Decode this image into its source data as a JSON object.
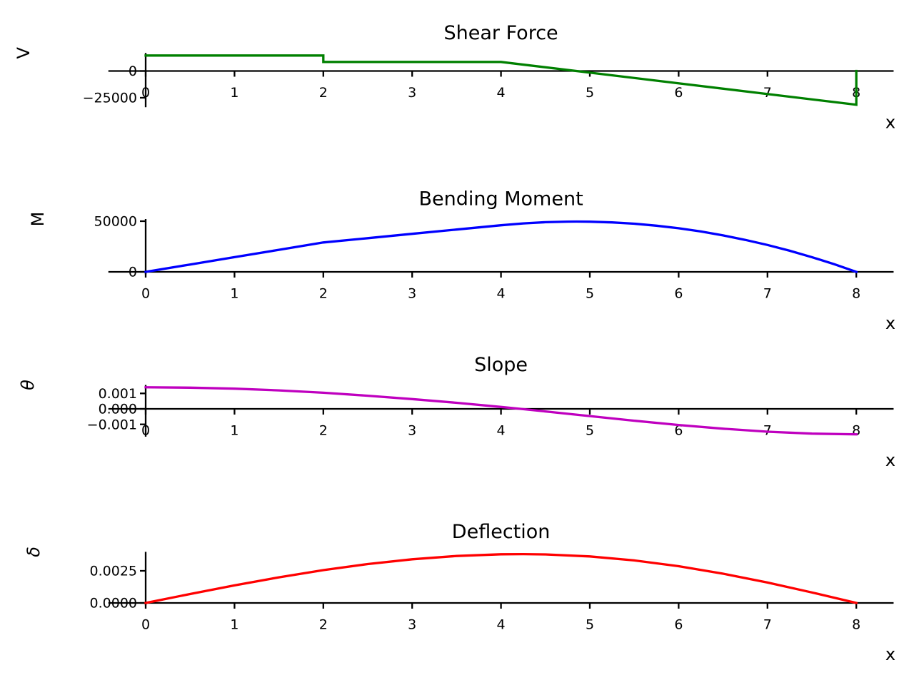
{
  "figure": {
    "background": "#ffffff",
    "text_color": "#000000"
  },
  "chart_data": [
    {
      "type": "line",
      "title": "Shear Force",
      "ylabel": "V",
      "ylabel_italic": false,
      "xlabel": "x",
      "color": "#008000",
      "grid": false,
      "legend": "none",
      "xlim": [
        -0.42,
        8.42
      ],
      "ylim": [
        -33800,
        16800
      ],
      "xticks": [
        0,
        1,
        2,
        3,
        4,
        5,
        6,
        7,
        8
      ],
      "yticks": [
        {
          "value": 0,
          "label": "0"
        },
        {
          "value": -25000,
          "label": "−25000"
        }
      ],
      "x": [
        0,
        2,
        2,
        4,
        8,
        8
      ],
      "y": [
        14500,
        14500,
        8500,
        8500,
        -31500,
        0
      ],
      "shape_note": "constant 14500 on [0,2], step down to 8500 on [2,4], linear drop to -31500 at x=8, vertical jump back to 0"
    },
    {
      "type": "line",
      "title": "Bending Moment",
      "ylabel": "M",
      "ylabel_italic": false,
      "xlabel": "x",
      "color": "#0000ff",
      "grid": false,
      "legend": "none",
      "xlim": [
        -0.42,
        8.42
      ],
      "ylim": [
        -2481,
        52093
      ],
      "xticks": [
        0,
        1,
        2,
        3,
        4,
        5,
        6,
        7,
        8
      ],
      "yticks": [
        {
          "value": 50000,
          "label": "50000"
        },
        {
          "value": 0,
          "label": "0"
        }
      ],
      "x": [
        0,
        0.5,
        1,
        1.5,
        2,
        2.5,
        3,
        3.5,
        4,
        4.25,
        4.5,
        4.75,
        4.85,
        5,
        5.25,
        5.5,
        5.75,
        6,
        6.25,
        6.5,
        6.75,
        7,
        7.25,
        7.5,
        7.75,
        8
      ],
      "y": [
        0,
        7250,
        14500,
        21750,
        29000,
        33250,
        37500,
        41750,
        46000,
        47813,
        49000,
        49563,
        49612,
        49500,
        48813,
        47500,
        45563,
        43000,
        39813,
        36000,
        31563,
        26500,
        20813,
        14500,
        7563,
        0
      ],
      "shape_note": "rises piecewise-linearly to 46000 at x=4, parabolic peak ~49600 near x=4.85, back to 0 at x=8"
    },
    {
      "type": "line",
      "title": "Slope",
      "ylabel": "θ",
      "ylabel_italic": true,
      "xlabel": "x",
      "color": "#bf00bf",
      "grid": false,
      "legend": "none",
      "xlim": [
        -0.42,
        8.42
      ],
      "ylim": [
        -0.001798,
        0.001546
      ],
      "xticks": [
        0,
        1,
        2,
        3,
        4,
        5,
        6,
        7,
        8
      ],
      "yticks": [
        {
          "value": 0.001,
          "label": "0.001"
        },
        {
          "value": 0,
          "label": "0.000"
        },
        {
          "value": -0.001,
          "label": "−0.001"
        }
      ],
      "x": [
        0,
        0.5,
        1,
        1.5,
        2,
        2.5,
        3,
        3.5,
        4,
        4.25,
        4.5,
        5,
        5.5,
        6,
        6.5,
        7,
        7.5,
        8
      ],
      "y": [
        0.001394,
        0.001372,
        0.001306,
        0.001195,
        0.001041,
        0.000851,
        0.000635,
        0.000394,
        0.000126,
        -1.7e-05,
        -0.000165,
        -0.000466,
        -0.000763,
        -0.001041,
        -0.001283,
        -0.001475,
        -0.001601,
        -0.001646
      ],
      "shape_note": "starts ~+0.0014, crosses zero near x=4.25, flattens to ~-0.00165 at x=8"
    },
    {
      "type": "line",
      "title": "Deflection",
      "ylabel": "δ",
      "ylabel_italic": true,
      "xlabel": "x",
      "color": "#ff0000",
      "grid": false,
      "legend": "none",
      "xlim": [
        -0.42,
        8.42
      ],
      "ylim": [
        -0.000189,
        0.003978
      ],
      "xticks": [
        0,
        1,
        2,
        3,
        4,
        5,
        6,
        7,
        8
      ],
      "yticks": [
        {
          "value": 0.0025,
          "label": "0.0025"
        },
        {
          "value": 0,
          "label": "0.0000"
        }
      ],
      "x": [
        0,
        0.5,
        1,
        1.5,
        2,
        2.5,
        3,
        3.5,
        4,
        4.25,
        4.5,
        5,
        5.5,
        6,
        6.5,
        7,
        7.5,
        8
      ],
      "y": [
        0,
        0.000693,
        0.001365,
        0.001992,
        0.002553,
        0.003027,
        0.003399,
        0.003658,
        0.003789,
        0.003802,
        0.00378,
        0.003622,
        0.003314,
        0.002862,
        0.002279,
        0.001587,
        0.000815,
        0
      ],
      "shape_note": "zero at supports, smooth maximum ~0.0038 near x=4.25"
    }
  ]
}
